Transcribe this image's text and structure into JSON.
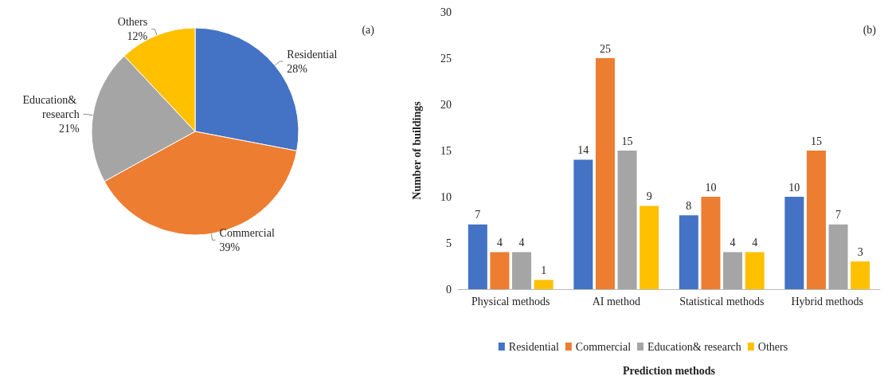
{
  "chart_data": [
    {
      "type": "pie",
      "categories": [
        "Residential",
        "Commercial",
        "Education& research",
        "Others"
      ],
      "values": [
        28,
        39,
        21,
        12
      ],
      "value_labels": [
        "28%",
        "39%",
        "21%",
        "12%"
      ],
      "colors": [
        "#4472c4",
        "#ed7d31",
        "#a5a5a5",
        "#ffc000"
      ],
      "legend": false,
      "annotations": [
        "(a)"
      ]
    },
    {
      "type": "bar",
      "categories": [
        "Physical methods",
        "AI method",
        "Statistical methods",
        "Hybrid methods"
      ],
      "series": [
        {
          "name": "Residential",
          "color": "#4472c4",
          "values": [
            7,
            14,
            8,
            10
          ]
        },
        {
          "name": "Commercial",
          "color": "#ed7d31",
          "values": [
            4,
            25,
            10,
            15
          ]
        },
        {
          "name": "Education& research",
          "color": "#a5a5a5",
          "values": [
            4,
            15,
            4,
            7
          ]
        },
        {
          "name": "Others",
          "color": "#ffc000",
          "values": [
            1,
            9,
            4,
            3
          ]
        }
      ],
      "ylim": [
        0,
        30
      ],
      "yticks": [
        0,
        5,
        10,
        15,
        20,
        25,
        30
      ],
      "xlabel": "Prediction methods",
      "ylabel": "Number of buildings",
      "data_labels": true,
      "legend": "bottom",
      "grid": false,
      "annotations": [
        "(b)"
      ]
    }
  ]
}
